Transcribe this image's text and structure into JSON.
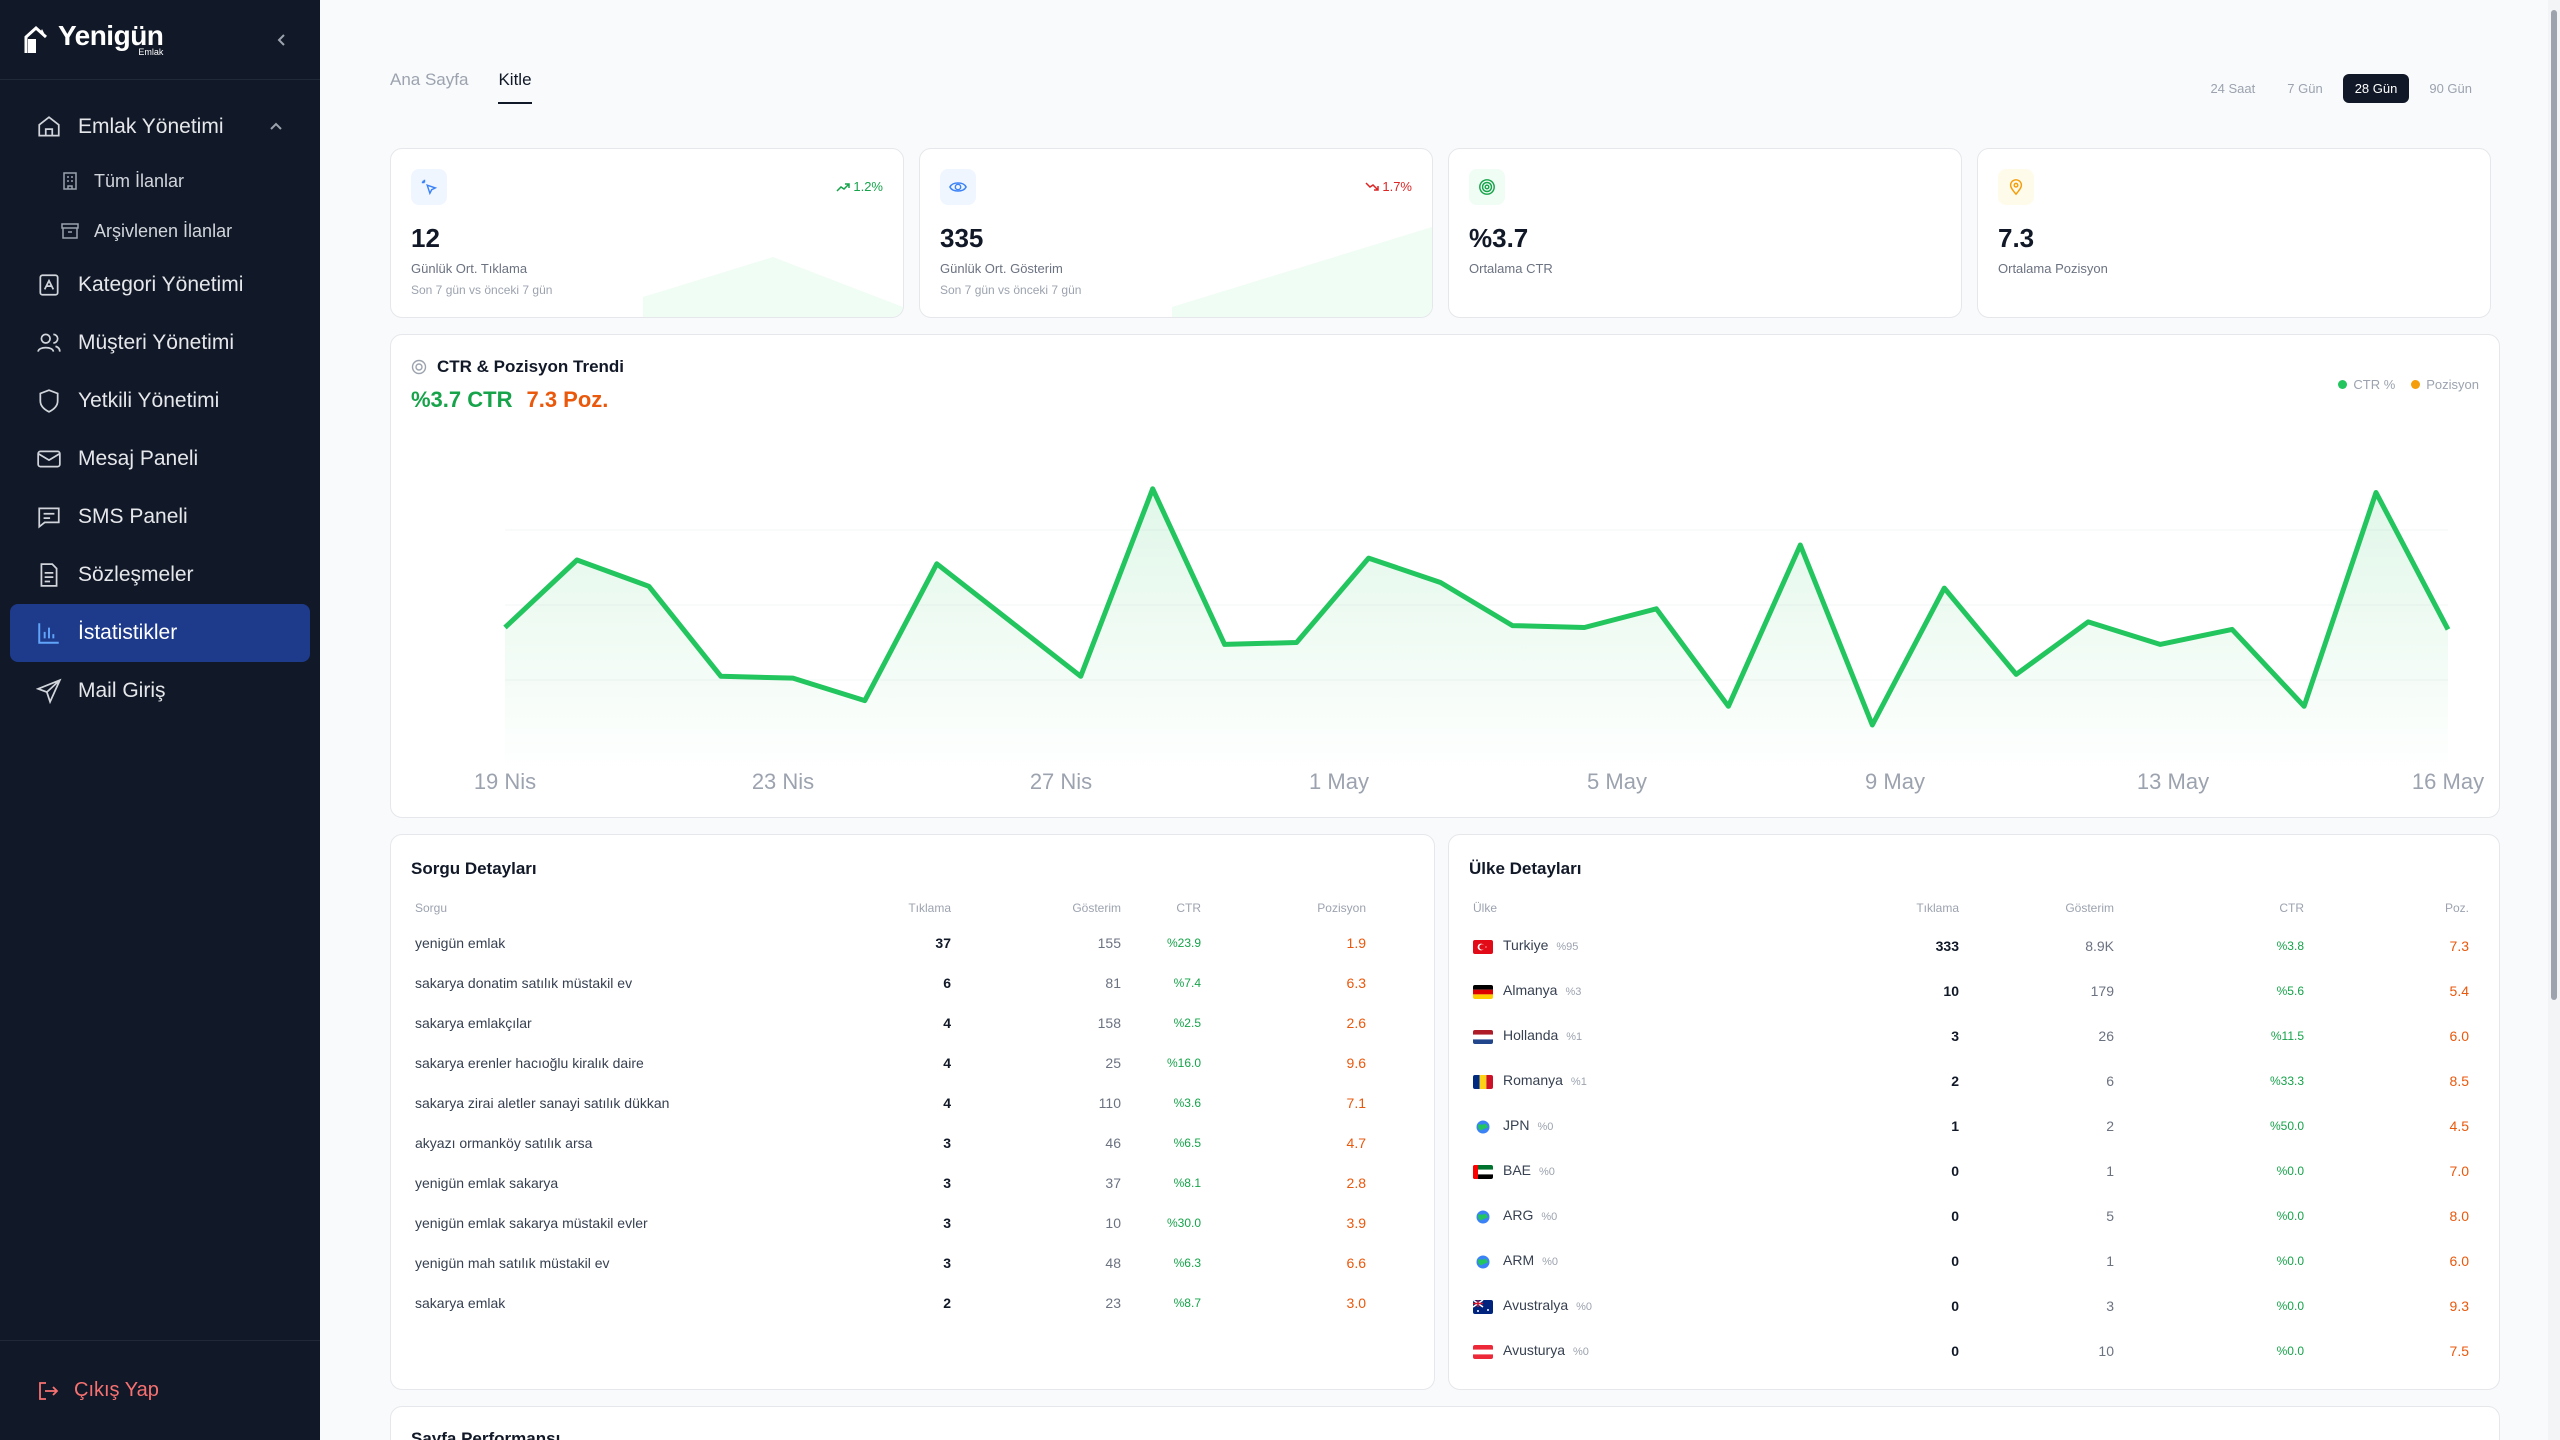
{
  "brand": {
    "name": "Yenigün",
    "sub": "Emlak"
  },
  "sidebar": {
    "items": [
      {
        "label": "Emlak Yönetimi",
        "icon": "home-icon",
        "expanded": true,
        "children": [
          {
            "label": "Tüm İlanlar",
            "icon": "building-icon"
          },
          {
            "label": "Arşivlenen İlanlar",
            "icon": "archive-icon"
          }
        ]
      },
      {
        "label": "Kategori Yönetimi",
        "icon": "category-icon"
      },
      {
        "label": "Müşteri Yönetimi",
        "icon": "users-icon"
      },
      {
        "label": "Yetkili Yönetimi",
        "icon": "shield-icon"
      },
      {
        "label": "Mesaj Paneli",
        "icon": "mail-icon"
      },
      {
        "label": "SMS Paneli",
        "icon": "sms-icon"
      },
      {
        "label": "Sözleşmeler",
        "icon": "document-icon"
      },
      {
        "label": "İstatistikler",
        "icon": "chart-bar-icon",
        "active": true
      },
      {
        "label": "Mail Giriş",
        "icon": "send-icon"
      }
    ],
    "logout": "Çıkış Yap"
  },
  "tabs": [
    {
      "label": "Ana Sayfa"
    },
    {
      "label": "Kitle",
      "active": true
    }
  ],
  "ranges": [
    {
      "label": "24 Saat"
    },
    {
      "label": "7 Gün"
    },
    {
      "label": "28 Gün",
      "active": true
    },
    {
      "label": "90 Gün"
    }
  ],
  "stats": [
    {
      "value": "12",
      "label": "Günlük Ort. Tıklama",
      "sub": "Son 7 gün vs önceki 7 gün",
      "delta": "1.2%",
      "trend": "up",
      "icon": "cursor-click-icon",
      "color": "#3b82f6"
    },
    {
      "value": "335",
      "label": "Günlük Ort. Gösterim",
      "sub": "Son 7 gün vs önceki 7 gün",
      "delta": "1.7%",
      "trend": "down",
      "icon": "eye-icon",
      "color": "#3b82f6"
    },
    {
      "value": "%3.7",
      "label": "Ortalama CTR",
      "icon": "target-icon",
      "color": "#16a34a"
    },
    {
      "value": "7.3",
      "label": "Ortalama Pozisyon",
      "icon": "map-pin-icon",
      "color": "#f59e0b"
    }
  ],
  "trend": {
    "title": "CTR & Pozisyon Trendi",
    "ctr_big": "%3.7 CTR",
    "pos_big": "7.3 Poz.",
    "legend": [
      "CTR %",
      "Pozisyon"
    ],
    "colors": {
      "ctr": "#22c55e",
      "pos": "#f59e0b"
    }
  },
  "chart_data": {
    "type": "line",
    "x_tick_labels": [
      "19 Nis",
      "23 Nis",
      "27 Nis",
      "1 May",
      "5 May",
      "9 May",
      "13 May",
      "16 May"
    ],
    "series": [
      {
        "name": "CTR %",
        "values": [
          3.4,
          5.2,
          4.5,
          2.1,
          2.05,
          1.45,
          5.1,
          3.6,
          2.1,
          7.1,
          2.95,
          3.0,
          5.25,
          4.6,
          3.45,
          3.4,
          3.9,
          1.3,
          5.6,
          0.8,
          4.45,
          2.15,
          3.55,
          2.95,
          3.35,
          1.3,
          7.0,
          3.35
        ]
      }
    ],
    "grid": true
  },
  "queries": {
    "title": "Sorgu Detayları",
    "columns": [
      "Sorgu",
      "Tıklama",
      "Gösterim",
      "CTR",
      "Pozisyon"
    ],
    "rows": [
      [
        "yenigün emlak",
        "37",
        "155",
        "%23.9",
        "1.9"
      ],
      [
        "sakarya donatim satılık müstakil ev",
        "6",
        "81",
        "%7.4",
        "6.3"
      ],
      [
        "sakarya emlakçılar",
        "4",
        "158",
        "%2.5",
        "2.6"
      ],
      [
        "sakarya erenler hacıoğlu kiralık daire",
        "4",
        "25",
        "%16.0",
        "9.6"
      ],
      [
        "sakarya zirai aletler sanayi satılık dükkan",
        "4",
        "110",
        "%3.6",
        "7.1"
      ],
      [
        "akyazı ormanköy satılık arsa",
        "3",
        "46",
        "%6.5",
        "4.7"
      ],
      [
        "yenigün emlak sakarya",
        "3",
        "37",
        "%8.1",
        "2.8"
      ],
      [
        "yenigün emlak sakarya müstakil evler",
        "3",
        "10",
        "%30.0",
        "3.9"
      ],
      [
        "yenigün mah satılık müstakil ev",
        "3",
        "48",
        "%6.3",
        "6.6"
      ],
      [
        "sakarya emlak",
        "2",
        "23",
        "%8.7",
        "3.0"
      ]
    ]
  },
  "countries": {
    "title": "Ülke Detayları",
    "columns": [
      "Ülke",
      "Tıklama",
      "Gösterim",
      "CTR",
      "Poz."
    ],
    "rows": [
      {
        "name": "Turkiye",
        "pct": "%95",
        "flag": "tr",
        "clicks": "333",
        "impr": "8.9K",
        "ctr": "%3.8",
        "pos": "7.3"
      },
      {
        "name": "Almanya",
        "pct": "%3",
        "flag": "de",
        "clicks": "10",
        "impr": "179",
        "ctr": "%5.6",
        "pos": "5.4"
      },
      {
        "name": "Hollanda",
        "pct": "%1",
        "flag": "nl",
        "clicks": "3",
        "impr": "26",
        "ctr": "%11.5",
        "pos": "6.0"
      },
      {
        "name": "Romanya",
        "pct": "%1",
        "flag": "ro",
        "clicks": "2",
        "impr": "6",
        "ctr": "%33.3",
        "pos": "8.5"
      },
      {
        "name": "JPN",
        "pct": "%0",
        "flag": "globe",
        "clicks": "1",
        "impr": "2",
        "ctr": "%50.0",
        "pos": "4.5"
      },
      {
        "name": "BAE",
        "pct": "%0",
        "flag": "ae",
        "clicks": "0",
        "impr": "1",
        "ctr": "%0.0",
        "pos": "7.0"
      },
      {
        "name": "ARG",
        "pct": "%0",
        "flag": "globe",
        "clicks": "0",
        "impr": "5",
        "ctr": "%0.0",
        "pos": "8.0"
      },
      {
        "name": "ARM",
        "pct": "%0",
        "flag": "globe",
        "clicks": "0",
        "impr": "1",
        "ctr": "%0.0",
        "pos": "6.0"
      },
      {
        "name": "Avustralya",
        "pct": "%0",
        "flag": "au",
        "clicks": "0",
        "impr": "3",
        "ctr": "%0.0",
        "pos": "9.3"
      },
      {
        "name": "Avusturya",
        "pct": "%0",
        "flag": "at",
        "clicks": "0",
        "impr": "10",
        "ctr": "%0.0",
        "pos": "7.5"
      }
    ]
  },
  "page_perf": {
    "title": "Sayfa Performansı"
  }
}
